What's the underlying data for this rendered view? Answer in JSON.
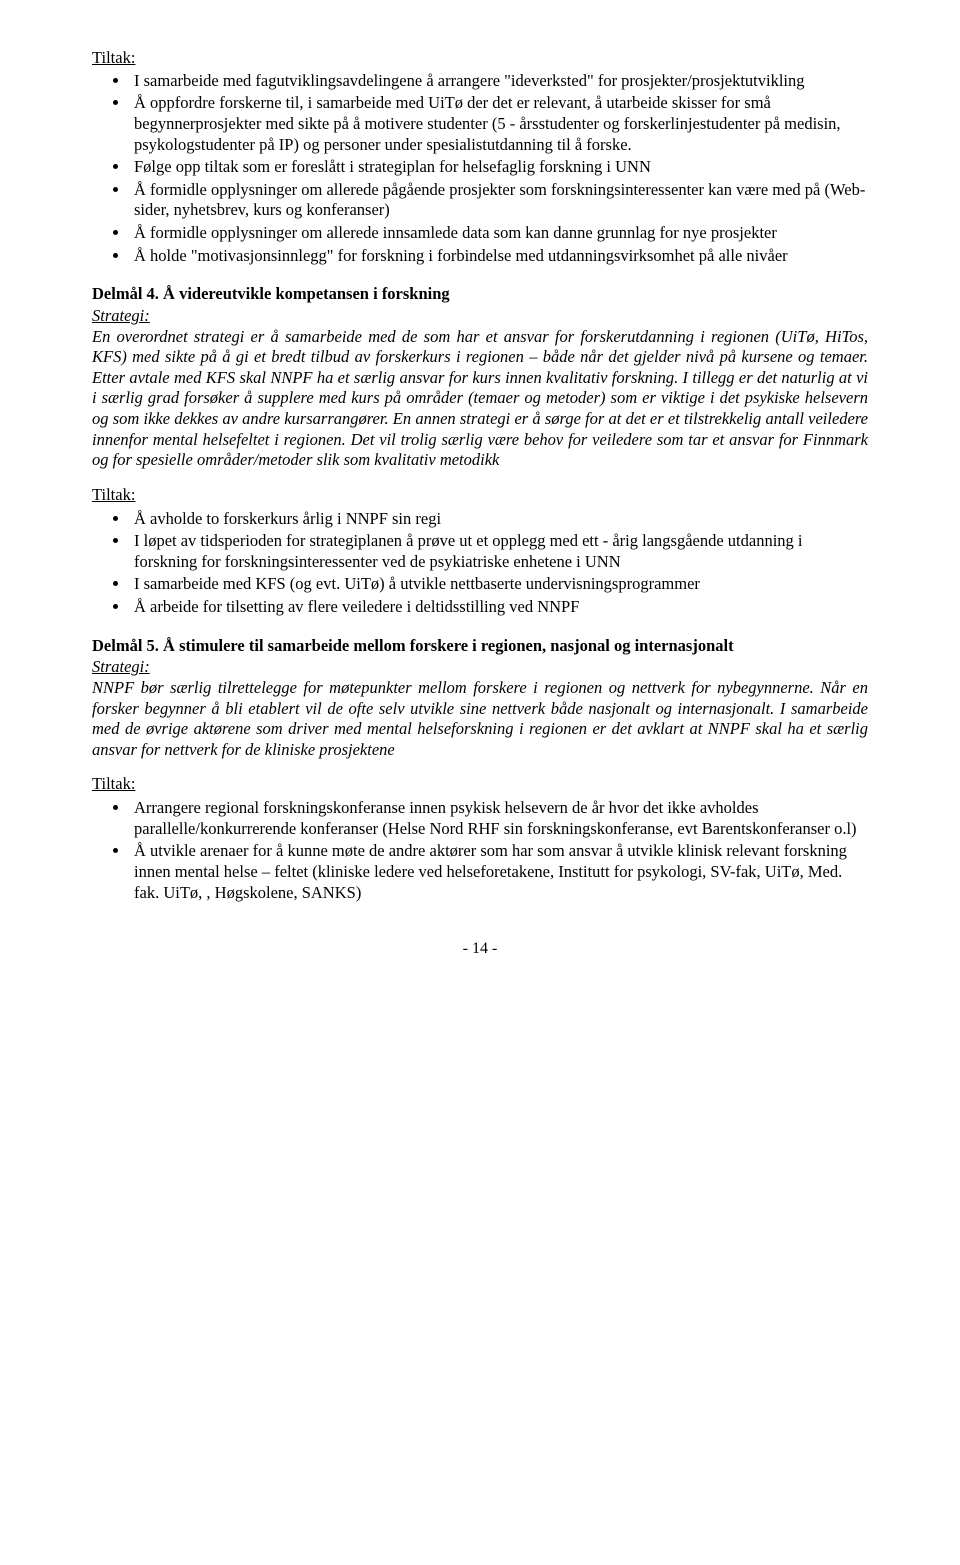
{
  "tiltak1_label": "Tiltak:",
  "tiltak1_items": [
    "I samarbeide med fagutviklingsavdelingene å arrangere \"ideverksted\" for prosjekter/prosjektutvikling",
    "Å oppfordre forskerne til, i samarbeide med UiTø der det er relevant, å utarbeide skisser for små begynnerprosjekter med sikte på å motivere studenter (5 - årsstudenter og forskerlinjestudenter på medisin, psykologstudenter på IP) og personer under spesialistutdanning til å forske.",
    "Følge opp tiltak som er foreslått i strategiplan for helsefaglig forskning i UNN",
    "Å formidle opplysninger om allerede pågående prosjekter som forskningsinteressenter kan være med på (Web-sider, nyhetsbrev, kurs og konferanser)",
    "Å formidle opplysninger om allerede innsamlede data som kan danne grunnlag for nye prosjekter",
    "Å holde \"motivasjonsinnlegg\" for forskning i forbindelse med utdanningsvirksomhet på alle nivåer"
  ],
  "delmal4_heading": "Delmål 4. Å videreutvikle kompetansen i forskning",
  "strategy_label": "Strategi:",
  "delmal4_strategy": "En overordnet strategi er å samarbeide med de som har et ansvar for forskerutdanning i regionen (UiTø, HiTos, KFS) med sikte på å gi et bredt tilbud av forskerkurs i regionen – både når det gjelder nivå på kursene og temaer. Etter avtale med KFS skal NNPF ha et særlig ansvar for kurs innen kvalitativ forskning. I tillegg er det naturlig at vi i særlig grad forsøker å supplere med kurs på områder (temaer og metoder) som er viktige i det psykiske helsevern og som ikke dekkes av andre kursarrangører. En annen strategi er å sørge for at det er et tilstrekkelig antall veiledere innenfor mental helsefeltet i regionen. Det vil trolig særlig være behov for veiledere som tar et ansvar for Finnmark og for spesielle områder/metoder slik som kvalitativ metodikk",
  "tiltak2_label": "Tiltak:",
  "tiltak2_items": [
    "Å avholde to forskerkurs årlig i NNPF sin regi",
    "I løpet av tidsperioden for strategiplanen å prøve ut et opplegg med ett - årig langsgående utdanning i forskning for forskningsinteressenter ved de psykiatriske enhetene i UNN",
    "I samarbeide med KFS (og evt. UiTø) å utvikle nettbaserte undervisningsprogrammer",
    "Å arbeide for tilsetting av flere veiledere i deltidsstilling ved NNPF"
  ],
  "delmal5_heading": "Delmål 5. Å stimulere til samarbeide mellom forskere i regionen, nasjonal og internasjonalt",
  "delmal5_strategy": "NNPF bør særlig tilrettelegge for møtepunkter mellom forskere i regionen og nettverk for nybegynnerne. Når en forsker begynner å bli etablert vil de ofte selv utvikle sine nettverk både nasjonalt og internasjonalt. I samarbeide med de øvrige aktørene som driver med mental helseforskning i regionen er det avklart at NNPF skal ha et særlig ansvar for nettverk for de kliniske prosjektene",
  "tiltak3_label": "Tiltak:",
  "tiltak3_items": [
    "Arrangere regional forskningskonferanse innen psykisk helsevern de år hvor det ikke avholdes parallelle/konkurrerende konferanser (Helse Nord RHF sin forskningskonferanse, evt Barentskonferanser o.l)",
    "Å utvikle arenaer for å kunne møte de andre aktører som har som ansvar å utvikle klinisk relevant forskning innen mental helse – feltet (kliniske ledere ved helseforetakene, Institutt for psykologi, SV-fak, UiTø, Med. fak. UiTø, , Høgskolene, SANKS)"
  ],
  "page_number": "- 14 -"
}
